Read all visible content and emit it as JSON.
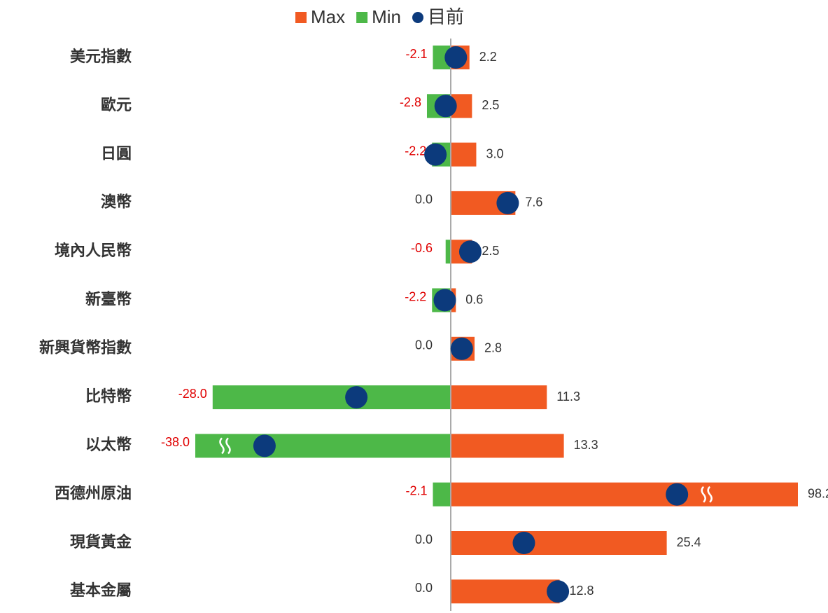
{
  "chart_data": {
    "type": "range_bar",
    "categories": [
      "美元指數",
      "歐元",
      "日圓",
      "澳幣",
      "境內人民幣",
      "新臺幣",
      "新興貨幣指數",
      "比特幣",
      "以太幣",
      "西德州原油",
      "現貨黃金",
      "基本金屬"
    ],
    "series": [
      {
        "name": "Max",
        "color": "#f15a22",
        "values": [
          2.2,
          2.5,
          3.0,
          7.6,
          2.5,
          0.6,
          2.8,
          11.3,
          13.3,
          98.2,
          25.4,
          12.8
        ],
        "value_labels": [
          "2.2",
          "2.5",
          "3.0",
          "7.6",
          "2.5",
          "0.6",
          "2.8",
          "11.3",
          "13.3",
          "98.2",
          "25.4",
          "12.8"
        ]
      },
      {
        "name": "Min",
        "color": "#4db848",
        "values": [
          -2.1,
          -2.8,
          -2.2,
          0.0,
          -0.6,
          -2.2,
          0.0,
          -28.0,
          -38.0,
          -2.1,
          0.0,
          0.0
        ],
        "value_labels": [
          "-2.1",
          "-2.8",
          "-2.2",
          "0.0",
          "-0.6",
          "-2.2",
          "0.0",
          "-28.0",
          "-38.0",
          "-2.1",
          "0.0",
          "0.0"
        ]
      },
      {
        "name": "目前",
        "color": "#0c3a7c",
        "values": [
          0.6,
          -0.6,
          -1.8,
          6.7,
          2.3,
          -0.7,
          1.3,
          -11.1,
          -21.9,
          26.6,
          8.6,
          12.6
        ]
      }
    ]
  }
}
